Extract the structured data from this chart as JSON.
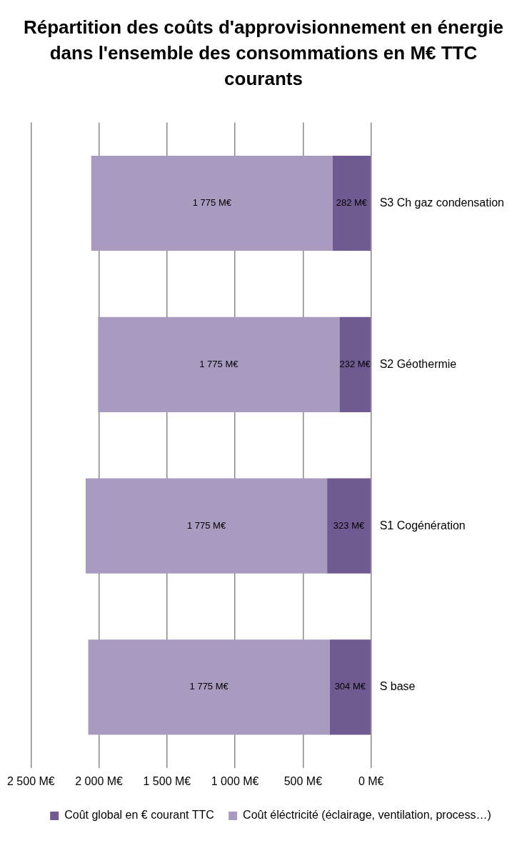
{
  "chart_data": {
    "type": "bar",
    "title": "Répartition des coûts d'approvisionnement en énergie dans l'ensemble des consommations en M€ TTC courants",
    "orientation": "horizontal",
    "categories": [
      "S3 Ch gaz condensation",
      "S2 Géothermie",
      "S1 Cogénération",
      "S base"
    ],
    "stacked": true,
    "series": [
      {
        "name": "Coût global en € courant TTC",
        "color": "#705a92",
        "values": [
          282,
          232,
          323,
          304
        ],
        "value_labels": [
          "282 M€",
          "232 M€",
          "323 M€",
          "304 M€"
        ]
      },
      {
        "name": "Coût éléctricité (éclairage, ventilation, process…)",
        "color": "#a99bbf",
        "values": [
          1775,
          1775,
          1775,
          1775
        ],
        "value_labels": [
          "1 775 M€",
          "1 775 M€",
          "1 775 M€",
          "1 775 M€"
        ]
      }
    ],
    "xlim": [
      2500,
      0
    ],
    "xticks": [
      {
        "value": 2500,
        "label": "2 500 M€"
      },
      {
        "value": 2000,
        "label": "2 000 M€"
      },
      {
        "value": 1500,
        "label": "1 500 M€"
      },
      {
        "value": 1000,
        "label": "1 000 M€"
      },
      {
        "value": 500,
        "label": "500 M€"
      },
      {
        "value": 0,
        "label": "0 M€"
      }
    ],
    "grid": "x",
    "legend": "bottom"
  }
}
